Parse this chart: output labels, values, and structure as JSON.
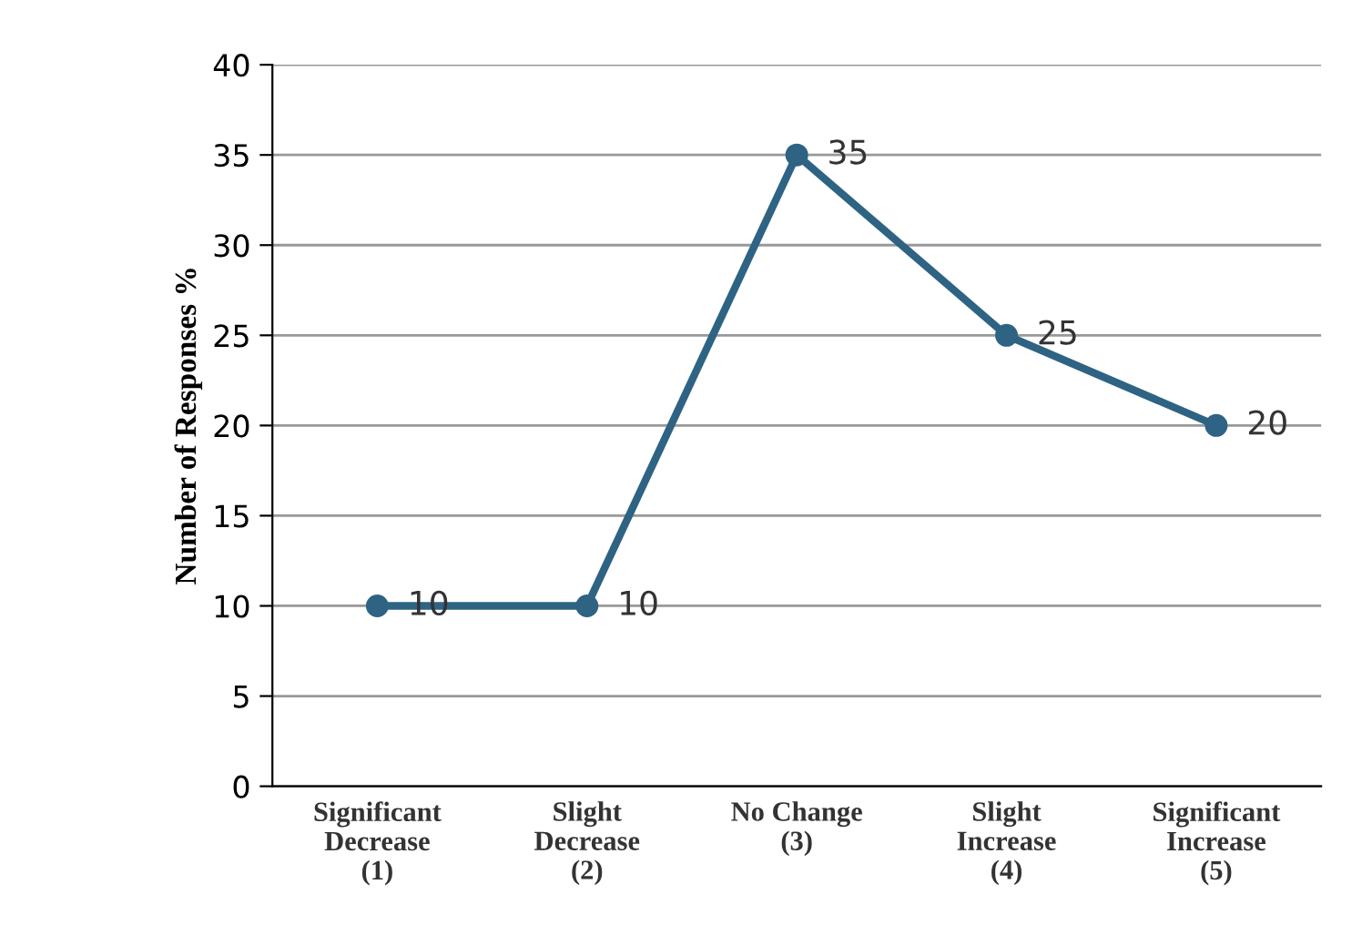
{
  "chart_data": {
    "type": "line",
    "ylabel": "Number of Responses %",
    "categories": [
      "Significant\nDecrease\n(1)",
      "Slight\nDecrease\n(2)",
      "No Change\n(3)",
      "Slight\nIncrease\n(4)",
      "Significant\nIncrease\n(5)"
    ],
    "series": [
      {
        "color": "#2e6384",
        "values": [
          10,
          10,
          35,
          25,
          20
        ]
      }
    ],
    "ylim": [
      0,
      40
    ],
    "yticks": [
      0,
      5,
      10,
      15,
      20,
      25,
      30,
      35,
      40
    ],
    "grid": "y",
    "marker": "circle",
    "line_style": "solid",
    "data_labels": true
  }
}
